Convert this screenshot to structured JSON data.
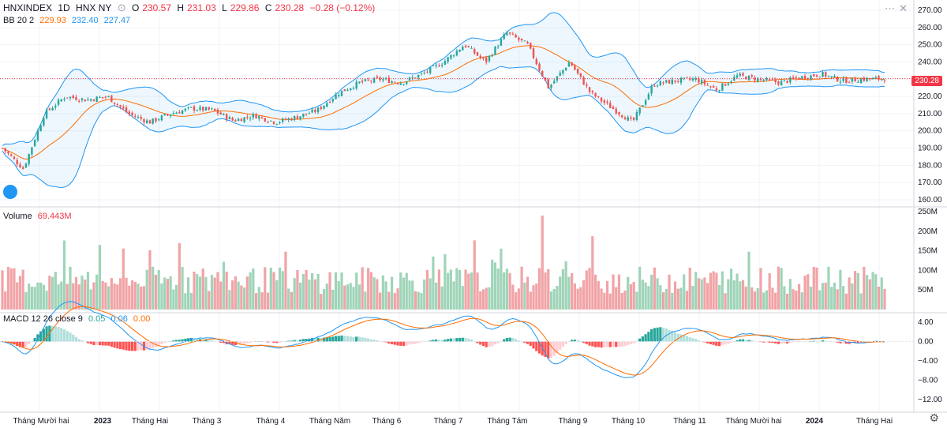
{
  "header": {
    "symbol": "HNXINDEX",
    "interval": "1D",
    "exchange": "HNX NY",
    "open_label": "O",
    "open": "230.57",
    "high_label": "H",
    "high": "231.03",
    "low_label": "L",
    "low": "229.86",
    "close_label": "C",
    "close": "230.28",
    "change": "−0.28 (−0.12%)"
  },
  "bb_legend": {
    "name": "BB 20 2",
    "basis": "229.93",
    "upper": "232.40",
    "lower": "227.47"
  },
  "volume_legend": {
    "name": "Volume",
    "value": "69.443M"
  },
  "macd_legend": {
    "name": "MACD 12 26 close 9",
    "hist": "0.05",
    "macd": "0.06",
    "signal": "0.00"
  },
  "price_tag": "230.28",
  "colors": {
    "up": "#26a69a",
    "down": "#ef5350",
    "bb_band": "#2196f3",
    "bb_basis": "#ff6d00",
    "vol_up": "#9fd4b8",
    "vol_down": "#f1a3a6",
    "macd_line": "#2196f3",
    "signal_line": "#ff6d00"
  },
  "icons": {
    "visibility": "eye-icon",
    "settings": "gear-icon",
    "close": "close-icon",
    "more": "more-icon"
  },
  "chart_data": {
    "type": "candlestick",
    "title": "HNXINDEX 1D HNX NY",
    "x_tick_labels": [
      "Tháng Mười hai",
      "2023",
      "Tháng Hai",
      "Tháng 3",
      "Tháng 4",
      "Tháng Năm",
      "Tháng 6",
      "Tháng 7",
      "Tháng Tám",
      "Tháng 9",
      "Tháng 10",
      "Tháng 11",
      "Tháng Mười hai",
      "2024",
      "Tháng Hai"
    ],
    "price_axis": {
      "ticks": [
        "270.00",
        "260.00",
        "250.00",
        "240.00",
        "230.00",
        "220.00",
        "210.00",
        "200.00",
        "190.00",
        "180.00",
        "170.00",
        "160.00"
      ],
      "ylim": [
        160,
        270
      ]
    },
    "volume_axis": {
      "ticks": [
        "250M",
        "200M",
        "150M",
        "100M",
        "50M"
      ],
      "ylim": [
        0,
        250
      ]
    },
    "macd_axis": {
      "ticks": [
        "4.00",
        "0.00",
        "−4.00",
        "−8.00",
        "−12.00"
      ],
      "ylim": [
        -14,
        5
      ]
    },
    "price_anchors_months": [
      0,
      0.5,
      1,
      1.5,
      2,
      2.5,
      3,
      3.5,
      4,
      4.5,
      5,
      5.5,
      6,
      6.5,
      7,
      7.5,
      8,
      8.5,
      9,
      9.5,
      10,
      10.5,
      11,
      11.5,
      12,
      12.5,
      13,
      13.5,
      14
    ],
    "price_anchors_values": [
      190,
      178,
      210,
      220,
      218,
      220,
      210,
      205,
      210,
      213,
      212,
      206,
      209,
      205,
      208,
      212,
      222,
      228,
      230,
      228,
      233,
      240,
      250,
      240,
      257,
      250,
      225,
      240,
      222
    ],
    "price_anchors_tail_months": [
      15,
      15.5,
      16,
      16.5,
      17,
      17.5,
      18,
      18.5,
      19,
      19.5,
      20,
      20.5,
      21
    ],
    "price_anchors_tail_values": [
      205,
      227,
      229,
      230,
      224,
      232,
      230,
      228,
      231,
      233,
      229,
      230,
      230.28
    ],
    "volume_range_M": [
      40,
      240
    ],
    "macd_range": [
      -12.5,
      5
    ]
  }
}
